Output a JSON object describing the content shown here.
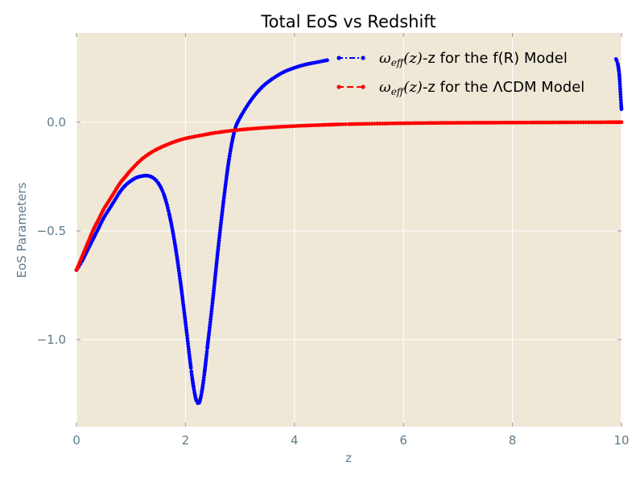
{
  "chart_data": {
    "type": "line",
    "title": "Total EoS vs Redshift",
    "xlabel": "z",
    "ylabel": "EoS Parameters",
    "xlim": [
      0,
      10
    ],
    "ylim": [
      -1.4,
      0.41
    ],
    "xticks": [
      0,
      2,
      4,
      6,
      8,
      10
    ],
    "xtick_labels": [
      "0",
      "2",
      "4",
      "6",
      "8",
      "10"
    ],
    "yticks": [
      -1.0,
      -0.5,
      0.0
    ],
    "ytick_labels": [
      "−1.0",
      "−0.5",
      "0.0"
    ],
    "grid": true,
    "legend_position": "top-right",
    "series": [
      {
        "name": "ωeff(z)-z for the f(R) Model",
        "legend": {
          "symbol": "ω",
          "subscript": "eff",
          "argument": "(z)",
          "suffix": "-z for the f(R) Model"
        },
        "color": "#0000ff",
        "linestyle": "dash-dot",
        "marker": "dot",
        "x": [
          0,
          0.1,
          0.2,
          0.3,
          0.4,
          0.5,
          0.6,
          0.7,
          0.8,
          0.9,
          1.0,
          1.1,
          1.2,
          1.3,
          1.4,
          1.5,
          1.6,
          1.7,
          1.8,
          1.9,
          2.0,
          2.1,
          2.15,
          2.2,
          2.25,
          2.3,
          2.35,
          2.4,
          2.5,
          2.6,
          2.7,
          2.8,
          2.9,
          3.0,
          3.2,
          3.4,
          3.6,
          3.8,
          4.0,
          4.2,
          4.4,
          4.6
        ],
        "values": [
          -0.68,
          -0.64,
          -0.59,
          -0.54,
          -0.49,
          -0.44,
          -0.4,
          -0.36,
          -0.32,
          -0.29,
          -0.27,
          -0.255,
          -0.248,
          -0.246,
          -0.255,
          -0.28,
          -0.33,
          -0.42,
          -0.55,
          -0.72,
          -0.92,
          -1.13,
          -1.22,
          -1.28,
          -1.29,
          -1.24,
          -1.15,
          -1.04,
          -0.82,
          -0.58,
          -0.36,
          -0.17,
          -0.04,
          0.02,
          0.1,
          0.16,
          0.2,
          0.23,
          0.25,
          0.265,
          0.275,
          0.285
        ],
        "x_tail": [
          9.9,
          9.93,
          9.96,
          9.98,
          10.0
        ],
        "values_tail": [
          0.29,
          0.27,
          0.22,
          0.14,
          0.06
        ]
      },
      {
        "name": "ωeff(z)-z for the ΛCDM Model",
        "legend": {
          "symbol": "ω",
          "subscript": "eff",
          "argument": "(z)",
          "suffix": "-z for the ΛCDM Model"
        },
        "color": "#ff0000",
        "linestyle": "dashed",
        "marker": "dot",
        "x": [
          0,
          0.1,
          0.2,
          0.3,
          0.4,
          0.5,
          0.6,
          0.7,
          0.8,
          0.9,
          1.0,
          1.2,
          1.4,
          1.6,
          1.8,
          2.0,
          2.3,
          2.6,
          3.0,
          3.5,
          4.0,
          4.5,
          5.0,
          6.0,
          7.0,
          8.0,
          9.0,
          10.0
        ],
        "values": [
          -0.68,
          -0.62,
          -0.56,
          -0.5,
          -0.45,
          -0.4,
          -0.36,
          -0.32,
          -0.28,
          -0.25,
          -0.22,
          -0.17,
          -0.135,
          -0.11,
          -0.09,
          -0.075,
          -0.06,
          -0.047,
          -0.035,
          -0.025,
          -0.018,
          -0.013,
          -0.009,
          -0.005,
          -0.003,
          -0.002,
          -0.001,
          0.0
        ]
      }
    ]
  },
  "colors": {
    "plot_background": "#efe8d7",
    "grid": "#ffffff",
    "tick_text": "#5f7a8a",
    "axis_text": "#5f7a8a"
  }
}
